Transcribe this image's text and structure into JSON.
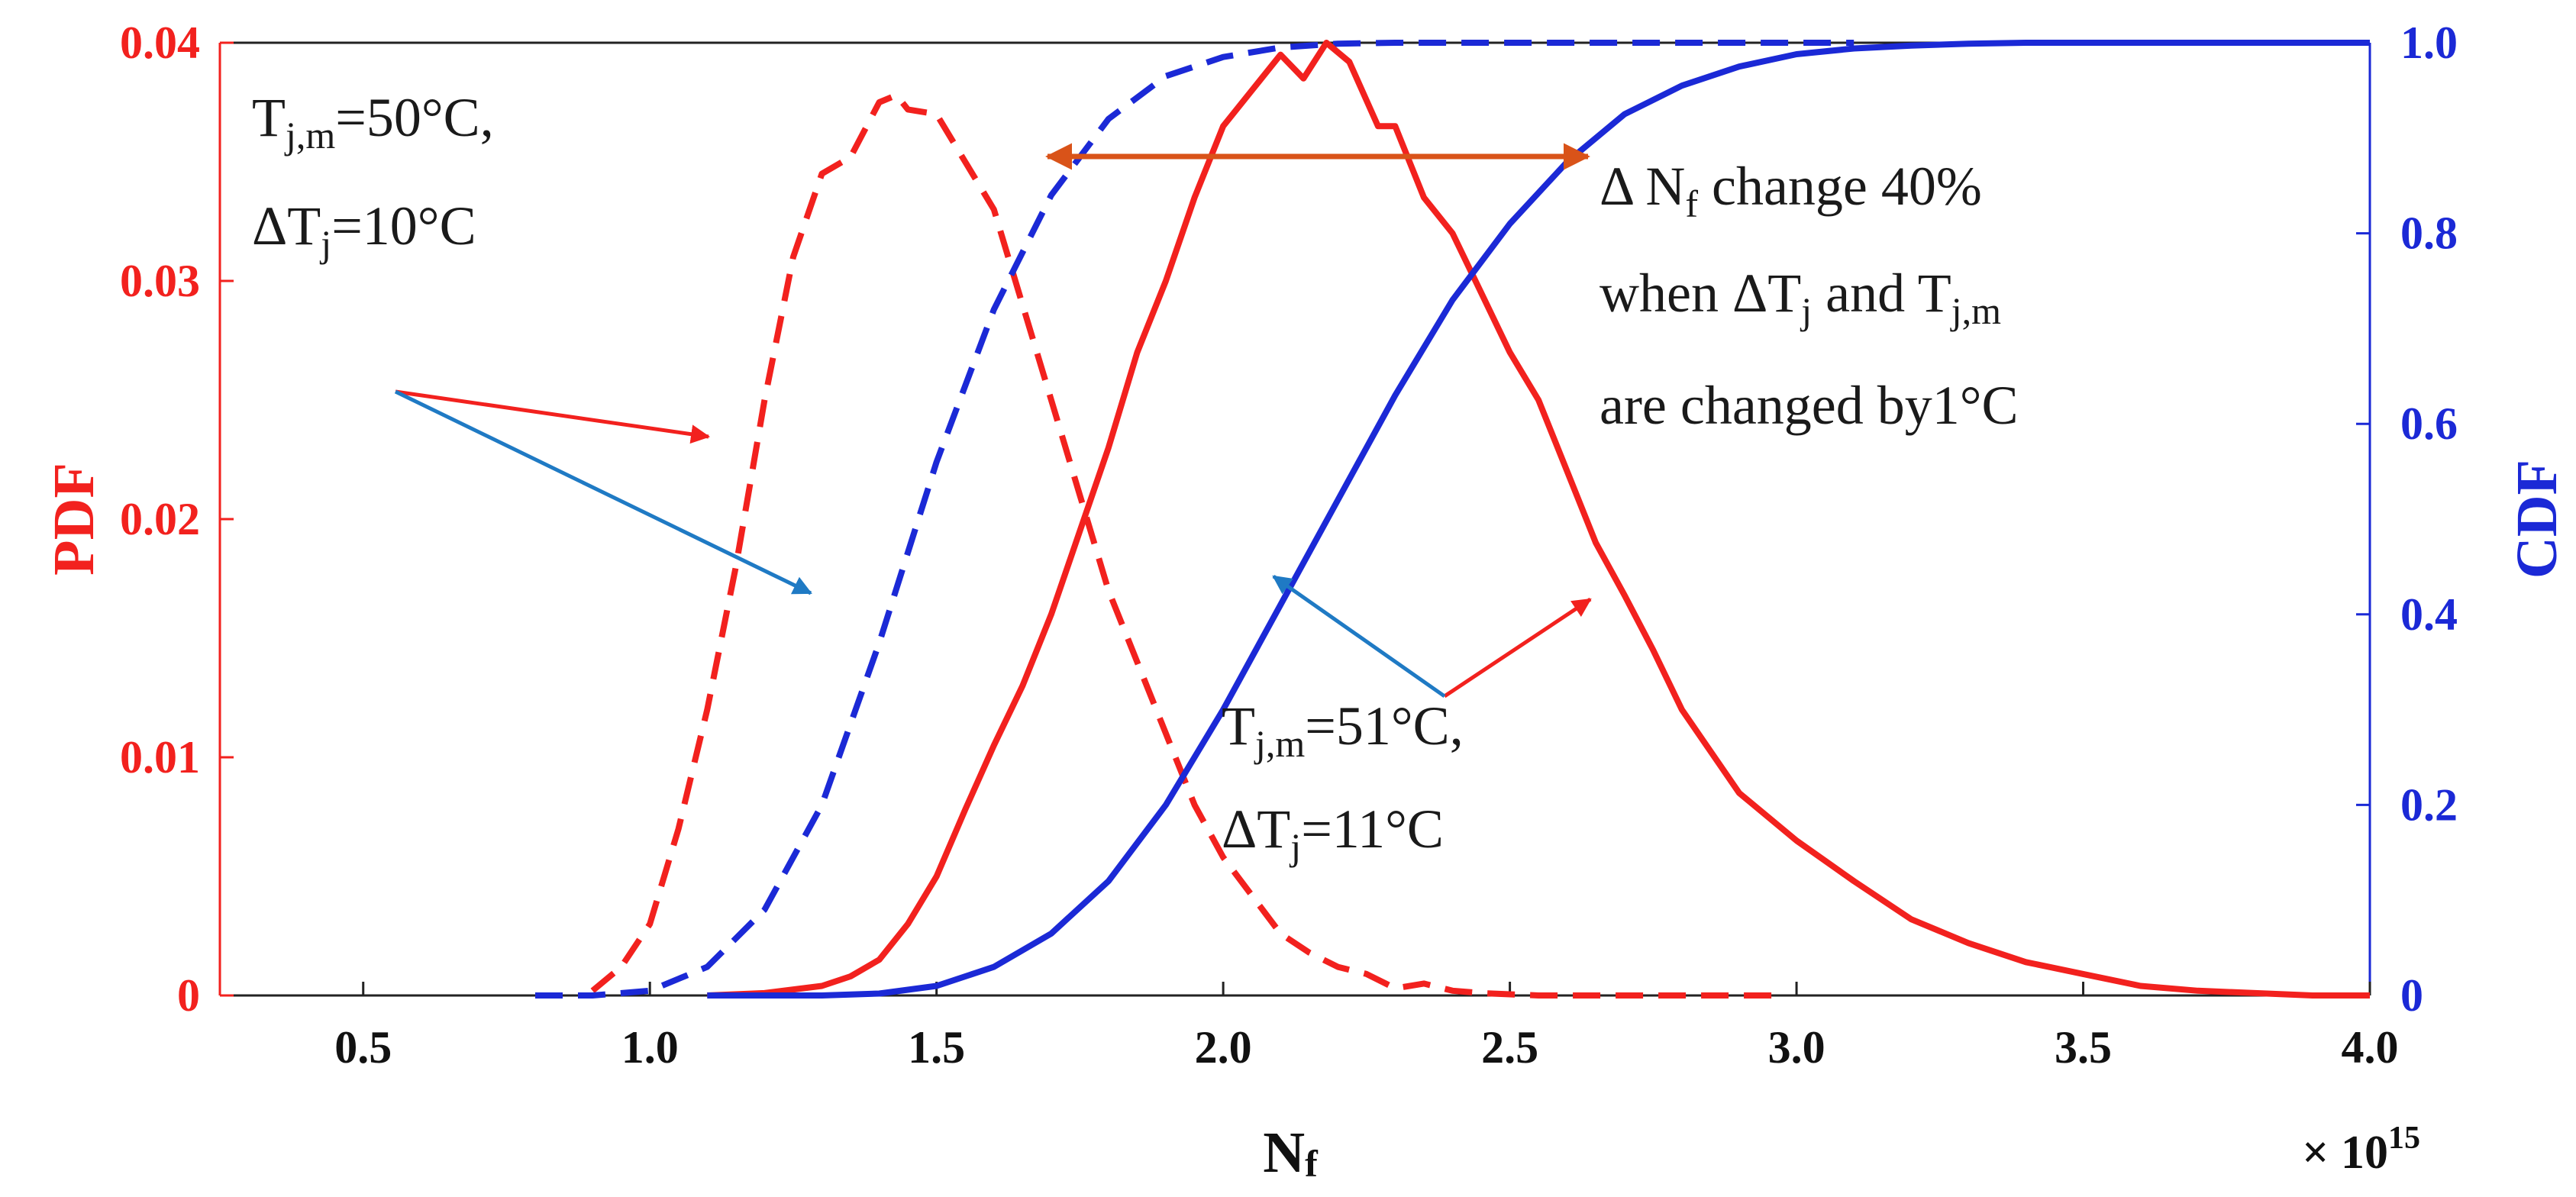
{
  "chart_data": {
    "type": "line",
    "xlabel": {
      "main": "N",
      "sub": "f"
    },
    "x_multiplier": {
      "prefix": "× 10",
      "exp": "15"
    },
    "xlim": [
      0.25,
      4.0
    ],
    "x_ticks": [
      "0.5",
      "1.0",
      "1.5",
      "2.0",
      "2.5",
      "3.0",
      "3.5",
      "4.0"
    ],
    "y_left": {
      "label": "PDF",
      "ylim": [
        0,
        0.04
      ],
      "ticks": [
        "0",
        "0.01",
        "0.02",
        "0.03",
        "0.04"
      ],
      "color": "#f2211e"
    },
    "y_right": {
      "label": "CDF",
      "ylim": [
        0,
        1.0
      ],
      "ticks": [
        "0",
        "0.2",
        "0.4",
        "0.6",
        "0.8",
        "1.0"
      ],
      "color": "#1b29d6"
    },
    "series": [
      {
        "name": "PDF, Tj,m=50°C, ΔTj=10°C",
        "axis": "left",
        "style": "dashed",
        "color": "#f2211e",
        "x": [
          0.9,
          0.95,
          1.0,
          1.05,
          1.1,
          1.15,
          1.2,
          1.25,
          1.3,
          1.35,
          1.4,
          1.43,
          1.45,
          1.5,
          1.55,
          1.6,
          1.65,
          1.7,
          1.75,
          1.8,
          1.85,
          1.9,
          1.95,
          2.0,
          2.05,
          2.1,
          2.15,
          2.2,
          2.25,
          2.3,
          2.35,
          2.4,
          2.45,
          2.55,
          2.7,
          2.98
        ],
        "values": [
          0.0002,
          0.0012,
          0.003,
          0.007,
          0.012,
          0.018,
          0.025,
          0.031,
          0.0345,
          0.0352,
          0.0375,
          0.0378,
          0.0372,
          0.037,
          0.035,
          0.033,
          0.029,
          0.025,
          0.021,
          0.017,
          0.014,
          0.011,
          0.008,
          0.0058,
          0.0042,
          0.0026,
          0.0018,
          0.0012,
          0.0009,
          0.0003,
          0.0005,
          0.0002,
          0.0001,
          0.0,
          0.0,
          0.0
        ]
      },
      {
        "name": "CDF, Tj,m=50°C, ΔTj=10°C",
        "axis": "right",
        "style": "dashed",
        "color": "#1b29d6",
        "x": [
          0.8,
          0.9,
          1.0,
          1.1,
          1.2,
          1.3,
          1.4,
          1.5,
          1.6,
          1.7,
          1.8,
          1.9,
          2.0,
          2.1,
          2.2,
          2.3,
          2.4,
          2.5,
          2.75,
          3.1
        ],
        "values": [
          0.0,
          0.0,
          0.005,
          0.03,
          0.09,
          0.2,
          0.37,
          0.56,
          0.72,
          0.84,
          0.92,
          0.965,
          0.985,
          0.995,
          0.999,
          1.0,
          1.0,
          1.0,
          1.0,
          1.0
        ]
      },
      {
        "name": "PDF, Tj,m=51°C, ΔTj=11°C",
        "axis": "left",
        "style": "solid",
        "color": "#f2211e",
        "x": [
          1.1,
          1.2,
          1.3,
          1.35,
          1.4,
          1.45,
          1.5,
          1.55,
          1.6,
          1.65,
          1.7,
          1.75,
          1.8,
          1.85,
          1.9,
          1.95,
          2.0,
          2.05,
          2.1,
          2.14,
          2.18,
          2.22,
          2.27,
          2.3,
          2.35,
          2.4,
          2.45,
          2.5,
          2.55,
          2.6,
          2.65,
          2.7,
          2.75,
          2.8,
          2.9,
          3.0,
          3.1,
          3.2,
          3.3,
          3.4,
          3.5,
          3.6,
          3.7,
          3.8,
          3.9,
          4.0
        ],
        "values": [
          0.0,
          0.0001,
          0.0004,
          0.0008,
          0.0015,
          0.003,
          0.005,
          0.0078,
          0.0105,
          0.013,
          0.016,
          0.0195,
          0.023,
          0.027,
          0.03,
          0.0335,
          0.0365,
          0.038,
          0.0395,
          0.0385,
          0.04,
          0.0392,
          0.0365,
          0.0365,
          0.0335,
          0.032,
          0.0295,
          0.027,
          0.025,
          0.022,
          0.019,
          0.0168,
          0.0145,
          0.012,
          0.0085,
          0.0065,
          0.0048,
          0.0032,
          0.0022,
          0.0014,
          0.0009,
          0.0004,
          0.0002,
          0.0001,
          0.0,
          0.0
        ]
      },
      {
        "name": "CDF, Tj,m=51°C, ΔTj=11°C",
        "axis": "right",
        "style": "solid",
        "color": "#1b29d6",
        "x": [
          1.1,
          1.3,
          1.4,
          1.5,
          1.6,
          1.7,
          1.8,
          1.9,
          2.0,
          2.1,
          2.2,
          2.3,
          2.4,
          2.5,
          2.6,
          2.7,
          2.8,
          2.9,
          3.0,
          3.1,
          3.2,
          3.3,
          3.4,
          3.5,
          3.6,
          4.0
        ],
        "values": [
          0.0,
          0.0,
          0.002,
          0.01,
          0.03,
          0.065,
          0.12,
          0.2,
          0.3,
          0.41,
          0.52,
          0.63,
          0.73,
          0.81,
          0.875,
          0.925,
          0.955,
          0.975,
          0.988,
          0.994,
          0.997,
          0.999,
          1.0,
          1.0,
          1.0,
          1.0
        ]
      }
    ],
    "annotations": [
      {
        "id": "a1",
        "lines": [
          {
            "main": "T",
            "sub": "j,m",
            "tail": "=50°C,"
          },
          {
            "main": "ΔT",
            "sub": "j",
            "tail": "=10°C"
          }
        ]
      },
      {
        "id": "a2",
        "lines": [
          {
            "main": "T",
            "sub": "j,m",
            "tail": "=51°C,"
          },
          {
            "main": "ΔT",
            "sub": "j",
            "tail": "=11°C"
          }
        ]
      },
      {
        "id": "a3",
        "lines": [
          {
            "main": "Δ N",
            "sub": "f",
            "tail": " change 40%"
          },
          {
            "main": "when ΔT",
            "sub": "j",
            "tail": " and T",
            "sub2": "j,m"
          },
          {
            "main": "are changed by1°C"
          }
        ]
      }
    ],
    "arrows": [
      {
        "from": "a1",
        "to": "PDF, Tj,m=50°C, ΔTj=10°C",
        "color": "#f2211e"
      },
      {
        "from": "a1",
        "to": "CDF, Tj,m=50°C, ΔTj=10°C",
        "color": "#1f7ac4"
      },
      {
        "from": "a2",
        "to": "PDF, Tj,m=51°C, ΔTj=11°C",
        "color": "#f2211e"
      },
      {
        "from": "a2",
        "to": "CDF, Tj,m=51°C, ΔTj=11°C",
        "color": "#1f7ac4"
      },
      {
        "from": "a3",
        "type": "double",
        "color": "#d95319"
      }
    ]
  }
}
